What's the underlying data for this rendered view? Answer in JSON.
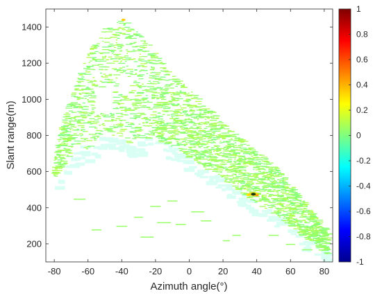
{
  "chart_data": {
    "type": "heatmap",
    "title": "",
    "xlabel": "Azimuth angle(°)",
    "ylabel": "Slant range(m)",
    "xlim": [
      -85,
      85
    ],
    "ylim": [
      100,
      1500
    ],
    "x_ticks": [
      -80,
      -60,
      -40,
      -20,
      0,
      20,
      40,
      60,
      80
    ],
    "x_tick_labels": [
      "-80",
      "-60",
      "-40",
      "-20",
      "0",
      "20",
      "40",
      "60",
      "80"
    ],
    "y_ticks": [
      200,
      400,
      600,
      800,
      1000,
      1200,
      1400
    ],
    "y_tick_labels": [
      "200",
      "400",
      "600",
      "800",
      "1000",
      "1200",
      "1400"
    ],
    "colorbar": {
      "range": [
        -1,
        1
      ],
      "colormap": "jet",
      "ticks": [
        -1,
        -0.8,
        -0.6,
        -0.4,
        -0.2,
        0,
        0.2,
        0.4,
        0.6,
        0.8,
        1
      ],
      "tick_labels": [
        "-1",
        "-0.8",
        "-0.6",
        "-0.4",
        "-0.2",
        "0",
        "0.2",
        "0.4",
        "0.6",
        "0.8",
        "1"
      ]
    },
    "dominant_value": 0.05,
    "region": [
      [
        -80,
        560,
        670
      ],
      [
        -75,
        620,
        860
      ],
      [
        -70,
        700,
        1000
      ],
      [
        -65,
        760,
        1150
      ],
      [
        -60,
        700,
        1250
      ],
      [
        -55,
        780,
        1330
      ],
      [
        -50,
        820,
        1390
      ],
      [
        -45,
        800,
        1410
      ],
      [
        -40,
        780,
        1450
      ],
      [
        -35,
        760,
        1430
      ],
      [
        -30,
        780,
        1380
      ],
      [
        -25,
        790,
        1330
      ],
      [
        -20,
        780,
        1260
      ],
      [
        -15,
        760,
        1200
      ],
      [
        -10,
        740,
        1150
      ],
      [
        -5,
        710,
        1100
      ],
      [
        0,
        680,
        1060
      ],
      [
        5,
        650,
        1020
      ],
      [
        10,
        620,
        970
      ],
      [
        15,
        590,
        930
      ],
      [
        20,
        560,
        880
      ],
      [
        25,
        530,
        840
      ],
      [
        30,
        490,
        800
      ],
      [
        35,
        460,
        760
      ],
      [
        40,
        430,
        720
      ],
      [
        45,
        400,
        680
      ],
      [
        50,
        370,
        640
      ],
      [
        55,
        340,
        590
      ],
      [
        60,
        300,
        540
      ],
      [
        65,
        260,
        480
      ],
      [
        70,
        230,
        420
      ],
      [
        75,
        200,
        360
      ],
      [
        80,
        160,
        300
      ],
      [
        83,
        130,
        260
      ]
    ],
    "holes": [
      {
        "x": [
          -56,
          -44
        ],
        "y": [
          930,
          1070
        ]
      },
      {
        "x": [
          -42,
          -36
        ],
        "y": [
          1030,
          1150
        ]
      }
    ],
    "hotspot": {
      "x": 38,
      "y": 475,
      "value": 0.9
    },
    "secondary_points": [
      {
        "x": -39,
        "y": 1440,
        "value": 0.35
      },
      {
        "x": 40,
        "y": 470,
        "value": 0.55
      },
      {
        "x": 35,
        "y": 470,
        "value": 0.3
      }
    ],
    "scattered_segments": [
      [
        -20,
        410
      ],
      [
        -15,
        320
      ],
      [
        -5,
        310
      ],
      [
        10,
        330
      ],
      [
        -40,
        300
      ],
      [
        -55,
        280
      ],
      [
        22,
        220
      ],
      [
        28,
        250
      ],
      [
        -25,
        240
      ],
      [
        5,
        380
      ],
      [
        -30,
        350
      ],
      [
        50,
        250
      ],
      [
        60,
        200
      ],
      [
        70,
        170
      ],
      [
        -65,
        450
      ],
      [
        -10,
        440
      ]
    ]
  }
}
